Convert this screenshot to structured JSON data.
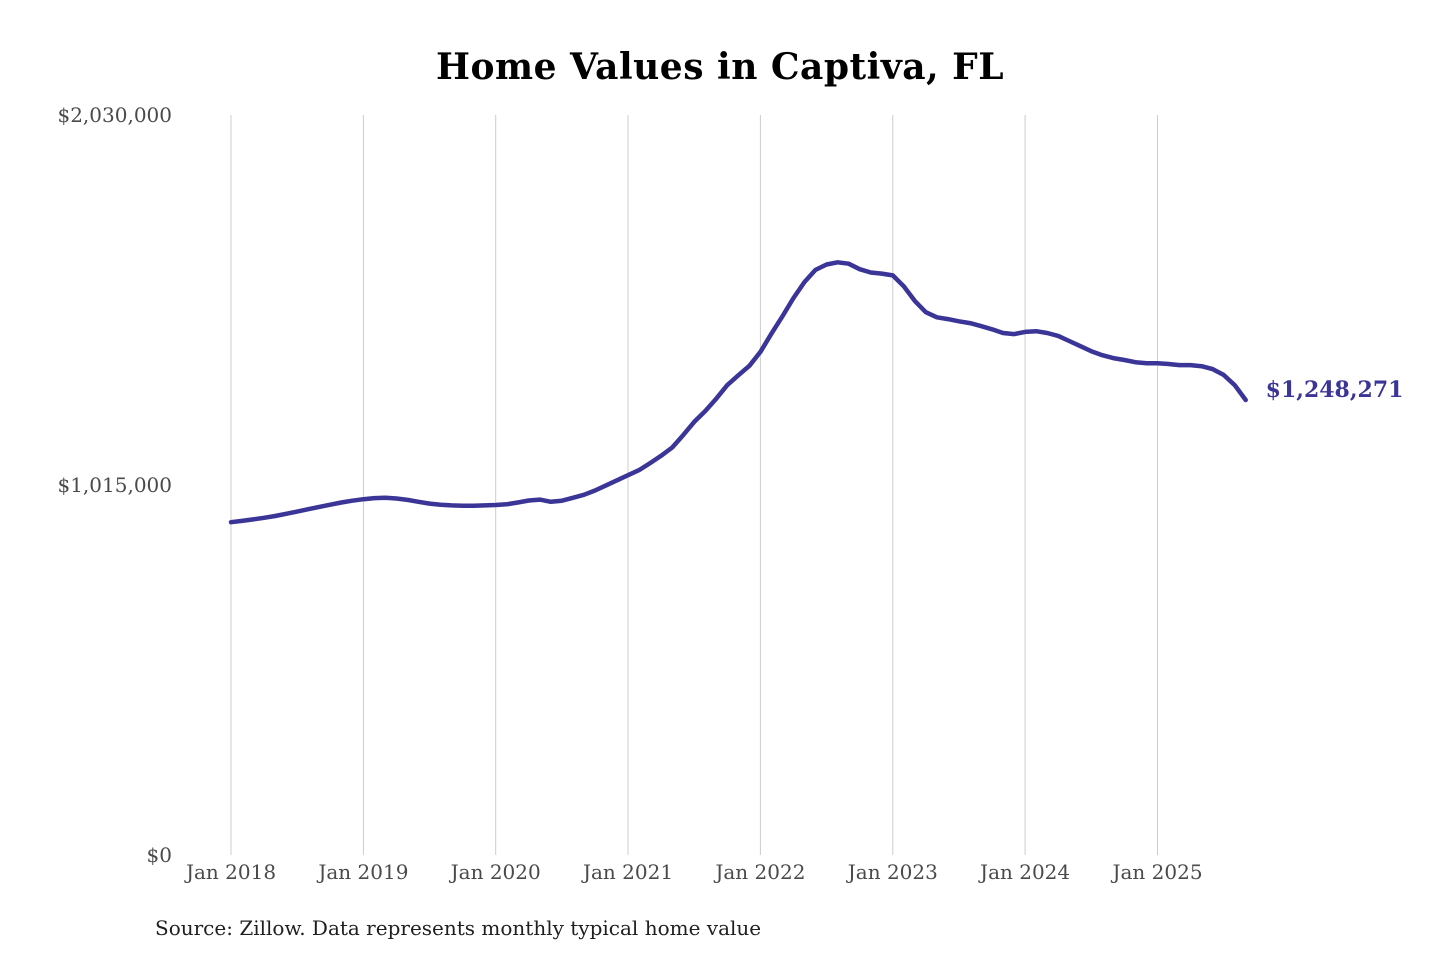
{
  "chart_data": {
    "type": "line",
    "title": "Home Values in Captiva, FL",
    "xlabel": "",
    "ylabel": "",
    "ylim": [
      0,
      2030000
    ],
    "grid": "vertical",
    "legend_position": "none",
    "line_color": "#3b3597",
    "gridline_color": "#cccccc",
    "tick_text_color": "#4a4a4a",
    "y_ticks": [
      {
        "value": 0,
        "label": "$0"
      },
      {
        "value": 1015000,
        "label": "$1,015,000"
      },
      {
        "value": 2030000,
        "label": "$2,030,000"
      }
    ],
    "x_ticks": [
      "Jan 2018",
      "Jan 2019",
      "Jan 2020",
      "Jan 2021",
      "Jan 2022",
      "Jan 2023",
      "Jan 2024",
      "Jan 2025"
    ],
    "series": [
      {
        "name": "Monthly typical home value",
        "start_month": "Jan 2018",
        "end_month": "Sep 2025",
        "values": [
          913000,
          916500,
          920500,
          925000,
          930000,
          936000,
          942000,
          948500,
          955000,
          961000,
          967000,
          972000,
          976000,
          979000,
          980000,
          978000,
          974000,
          969000,
          964000,
          961000,
          959000,
          958000,
          958000,
          959000,
          960000,
          962000,
          967000,
          972500,
          975000,
          969000,
          972000,
          980000,
          988000,
          1000000,
          1014000,
          1028000,
          1042000,
          1056000,
          1075000,
          1095000,
          1118000,
          1152000,
          1188000,
          1218000,
          1252000,
          1289000,
          1316000,
          1342000,
          1380000,
          1430000,
          1478000,
          1528000,
          1572000,
          1605000,
          1620000,
          1626000,
          1622000,
          1607000,
          1598000,
          1595000,
          1590000,
          1560000,
          1520000,
          1489000,
          1475000,
          1470000,
          1464000,
          1459000,
          1451000,
          1442000,
          1432000,
          1429000,
          1435000,
          1437000,
          1432000,
          1424000,
          1410000,
          1396000,
          1382000,
          1371000,
          1363000,
          1358000,
          1352000,
          1349000,
          1349000,
          1347000,
          1344000,
          1344000,
          1341000,
          1333000,
          1317000,
          1289000,
          1248271
        ]
      }
    ],
    "end_label": "$1,248,271",
    "end_value": 1248271
  },
  "footer": {
    "source_note": "Source: Zillow. Data represents monthly typical home value"
  }
}
